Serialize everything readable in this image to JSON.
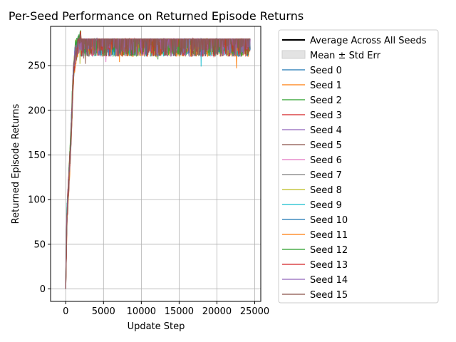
{
  "chart_data": {
    "type": "line",
    "title": "Per-Seed Performance on Returned Episode Returns",
    "xlabel": "Update Step",
    "ylabel": "Returned Episode Returns",
    "xlim": [
      -2000,
      25800
    ],
    "ylim": [
      -14,
      294
    ],
    "xticks": [
      0,
      5000,
      10000,
      15000,
      20000,
      25000
    ],
    "yticks": [
      0,
      50,
      100,
      150,
      200,
      250
    ],
    "grid": true,
    "legend_position": "outside-right",
    "average_label": "Average Across All Seeds",
    "band_label": "Mean ± Std Err",
    "series": [
      {
        "name": "Seed 0",
        "color": "#1f77b4",
        "points": [
          [
            0,
            0
          ],
          [
            150,
            80
          ],
          [
            400,
            120
          ],
          [
            700,
            170
          ],
          [
            1000,
            240
          ],
          [
            1300,
            265
          ],
          [
            2000,
            280
          ],
          [
            24400,
            280
          ]
        ],
        "dips": [
          [
            2100,
            265
          ],
          [
            6800,
            262
          ],
          [
            16100,
            263
          ]
        ]
      },
      {
        "name": "Seed 1",
        "color": "#ff7f0e",
        "points": [
          [
            0,
            0
          ],
          [
            150,
            75
          ],
          [
            400,
            115
          ],
          [
            700,
            165
          ],
          [
            1000,
            235
          ],
          [
            1300,
            262
          ],
          [
            2000,
            280
          ],
          [
            24400,
            280
          ]
        ],
        "dips": [
          [
            7100,
            254
          ],
          [
            13900,
            262
          ],
          [
            22600,
            247
          ]
        ]
      },
      {
        "name": "Seed 2",
        "color": "#2ca02c",
        "points": [
          [
            0,
            0
          ],
          [
            150,
            85
          ],
          [
            400,
            125
          ],
          [
            700,
            175
          ],
          [
            1000,
            245
          ],
          [
            1300,
            268
          ],
          [
            2000,
            280
          ],
          [
            24400,
            280
          ]
        ],
        "dips": [
          [
            12200,
            257
          ],
          [
            3400,
            263
          ],
          [
            18900,
            262
          ]
        ]
      },
      {
        "name": "Seed 3",
        "color": "#d62728",
        "points": [
          [
            0,
            0
          ],
          [
            150,
            78
          ],
          [
            400,
            118
          ],
          [
            700,
            168
          ],
          [
            1000,
            238
          ],
          [
            1300,
            264
          ],
          [
            2000,
            280
          ],
          [
            24400,
            280
          ]
        ],
        "dips": [
          [
            8900,
            262
          ],
          [
            14500,
            262
          ],
          [
            23100,
            264
          ]
        ]
      },
      {
        "name": "Seed 4",
        "color": "#9467bd",
        "points": [
          [
            0,
            0
          ],
          [
            150,
            82
          ],
          [
            400,
            122
          ],
          [
            700,
            172
          ],
          [
            1000,
            242
          ],
          [
            1300,
            266
          ],
          [
            2000,
            280
          ],
          [
            24400,
            280
          ]
        ],
        "dips": [
          [
            10400,
            263
          ],
          [
            19800,
            262
          ]
        ]
      },
      {
        "name": "Seed 5",
        "color": "#8c564b",
        "points": [
          [
            0,
            0
          ],
          [
            150,
            79
          ],
          [
            400,
            119
          ],
          [
            700,
            169
          ],
          [
            1000,
            239
          ],
          [
            1300,
            263
          ],
          [
            2000,
            280
          ],
          [
            24400,
            280
          ]
        ],
        "dips": [
          [
            2600,
            252
          ],
          [
            11300,
            262
          ],
          [
            21200,
            263
          ]
        ]
      },
      {
        "name": "Seed 6",
        "color": "#e377c2",
        "points": [
          [
            0,
            0
          ],
          [
            150,
            81
          ],
          [
            400,
            121
          ],
          [
            700,
            171
          ],
          [
            1000,
            241
          ],
          [
            1300,
            265
          ],
          [
            2000,
            280
          ],
          [
            24400,
            280
          ]
        ],
        "dips": [
          [
            5300,
            254
          ],
          [
            17500,
            263
          ]
        ]
      },
      {
        "name": "Seed 7",
        "color": "#7f7f7f",
        "points": [
          [
            0,
            0
          ],
          [
            150,
            77
          ],
          [
            400,
            117
          ],
          [
            700,
            167
          ],
          [
            1000,
            237
          ],
          [
            1300,
            262
          ],
          [
            2000,
            280
          ],
          [
            24400,
            280
          ]
        ],
        "dips": [
          [
            9600,
            262
          ],
          [
            20700,
            263
          ]
        ]
      },
      {
        "name": "Seed 8",
        "color": "#bcbd22",
        "points": [
          [
            0,
            0
          ],
          [
            150,
            83
          ],
          [
            400,
            123
          ],
          [
            700,
            173
          ],
          [
            1000,
            243
          ],
          [
            1300,
            267
          ],
          [
            2000,
            280
          ],
          [
            24400,
            280
          ]
        ],
        "dips": [
          [
            1900,
            252
          ],
          [
            13300,
            262
          ],
          [
            24000,
            263
          ]
        ]
      },
      {
        "name": "Seed 9",
        "color": "#17becf",
        "points": [
          [
            0,
            0
          ],
          [
            150,
            80
          ],
          [
            400,
            120
          ],
          [
            700,
            170
          ],
          [
            1000,
            240
          ],
          [
            1300,
            264
          ],
          [
            2000,
            280
          ],
          [
            24400,
            280
          ]
        ],
        "dips": [
          [
            17900,
            249
          ],
          [
            4300,
            263
          ]
        ]
      },
      {
        "name": "Seed 10",
        "color": "#1f77b4",
        "points": [
          [
            0,
            0
          ],
          [
            150,
            84
          ],
          [
            400,
            124
          ],
          [
            700,
            174
          ],
          [
            1000,
            244
          ],
          [
            1300,
            266
          ],
          [
            2000,
            280
          ],
          [
            24400,
            280
          ]
        ],
        "dips": [
          [
            6100,
            263
          ],
          [
            15200,
            262
          ]
        ]
      },
      {
        "name": "Seed 11",
        "color": "#ff7f0e",
        "points": [
          [
            0,
            0
          ],
          [
            150,
            76
          ],
          [
            400,
            116
          ],
          [
            700,
            166
          ],
          [
            1000,
            236
          ],
          [
            1300,
            261
          ],
          [
            2000,
            280
          ],
          [
            24400,
            280
          ]
        ],
        "dips": [
          [
            3900,
            262
          ],
          [
            19300,
            262
          ]
        ]
      },
      {
        "name": "Seed 12",
        "color": "#2ca02c",
        "points": [
          [
            0,
            0
          ],
          [
            150,
            86
          ],
          [
            400,
            126
          ],
          [
            700,
            176
          ],
          [
            1000,
            246
          ],
          [
            1300,
            268
          ],
          [
            2000,
            280
          ],
          [
            24400,
            280
          ]
        ],
        "dips": [
          [
            8100,
            263
          ],
          [
            22100,
            263
          ]
        ]
      },
      {
        "name": "Seed 13",
        "color": "#d62728",
        "points": [
          [
            0,
            0
          ],
          [
            150,
            78
          ],
          [
            400,
            118
          ],
          [
            700,
            168
          ],
          [
            1000,
            238
          ],
          [
            1300,
            263
          ],
          [
            2000,
            280
          ],
          [
            24400,
            280
          ]
        ],
        "dips": [
          [
            11900,
            262
          ],
          [
            16700,
            262
          ]
        ]
      },
      {
        "name": "Seed 14",
        "color": "#9467bd",
        "points": [
          [
            0,
            0
          ],
          [
            150,
            82
          ],
          [
            400,
            122
          ],
          [
            700,
            172
          ],
          [
            1000,
            242
          ],
          [
            1300,
            265
          ],
          [
            2000,
            280
          ],
          [
            24400,
            280
          ]
        ],
        "dips": [
          [
            14000,
            262
          ],
          [
            23600,
            263
          ]
        ]
      },
      {
        "name": "Seed 15",
        "color": "#8c564b",
        "points": [
          [
            0,
            0
          ],
          [
            150,
            80
          ],
          [
            400,
            120
          ],
          [
            700,
            170
          ],
          [
            1000,
            240
          ],
          [
            1300,
            264
          ],
          [
            2000,
            280
          ],
          [
            24400,
            280
          ]
        ],
        "dips": [
          [
            2400,
            258
          ],
          [
            10900,
            262
          ],
          [
            20100,
            262
          ]
        ]
      }
    ]
  }
}
